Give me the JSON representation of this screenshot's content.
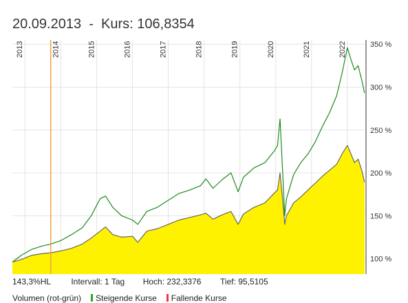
{
  "header": {
    "date": "20.09.2013",
    "separator": "-",
    "kurs_label": "Kurs:",
    "kurs_value": "106,8354"
  },
  "footer": {
    "hl": "143,3%HL",
    "interval": "Intervall: 1 Tag",
    "high": "Hoch: 232,3376",
    "low": "Tief: 95,5105"
  },
  "legend": {
    "volume": "Volumen (rot-grün)",
    "rising": "Steigende Kurse",
    "falling": "Fallende Kurse",
    "rising_color": "#22aa22",
    "falling_color": "#ee3344"
  },
  "chart_data": {
    "type": "area",
    "x_unit": "year",
    "xlim": [
      2012.65,
      2022.52
    ],
    "ylim": [
      82,
      355
    ],
    "y_axis_position": "right",
    "y_ticks": [
      {
        "value": 100,
        "label": "100 %"
      },
      {
        "value": 150,
        "label": "150 %"
      },
      {
        "value": 200,
        "label": "200 %"
      },
      {
        "value": 250,
        "label": "250 %"
      },
      {
        "value": 300,
        "label": "300 %"
      },
      {
        "value": 350,
        "label": "350 %"
      }
    ],
    "x_ticks": [
      {
        "value": 2013.0,
        "label": "2013"
      },
      {
        "value": 2014.0,
        "label": "2014"
      },
      {
        "value": 2015.0,
        "label": "2015"
      },
      {
        "value": 2016.0,
        "label": "2016"
      },
      {
        "value": 2017.0,
        "label": "2017"
      },
      {
        "value": 2018.0,
        "label": "2018"
      },
      {
        "value": 2019.0,
        "label": "2019"
      },
      {
        "value": 2020.0,
        "label": "2020"
      },
      {
        "value": 2021.0,
        "label": "2021"
      },
      {
        "value": 2022.0,
        "label": "2022"
      }
    ],
    "marker": {
      "x": 2013.72,
      "color": "#f5a040"
    },
    "grid": true,
    "series": [
      {
        "color": "#1a8a1a",
        "fill": "none",
        "points": [
          [
            2012.65,
            96
          ],
          [
            2012.9,
            104
          ],
          [
            2013.2,
            111
          ],
          [
            2013.5,
            115
          ],
          [
            2013.72,
            117
          ],
          [
            2014.0,
            121
          ],
          [
            2014.3,
            128
          ],
          [
            2014.6,
            136
          ],
          [
            2014.85,
            150
          ],
          [
            2015.1,
            170
          ],
          [
            2015.25,
            173
          ],
          [
            2015.45,
            160
          ],
          [
            2015.7,
            150
          ],
          [
            2016.0,
            145
          ],
          [
            2016.15,
            140
          ],
          [
            2016.4,
            155
          ],
          [
            2016.7,
            160
          ],
          [
            2017.0,
            168
          ],
          [
            2017.3,
            176
          ],
          [
            2017.6,
            180
          ],
          [
            2017.9,
            185
          ],
          [
            2018.05,
            193
          ],
          [
            2018.25,
            182
          ],
          [
            2018.5,
            192
          ],
          [
            2018.75,
            200
          ],
          [
            2018.95,
            178
          ],
          [
            2019.1,
            195
          ],
          [
            2019.4,
            206
          ],
          [
            2019.7,
            212
          ],
          [
            2019.95,
            225
          ],
          [
            2020.05,
            232
          ],
          [
            2020.12,
            263
          ],
          [
            2020.2,
            195
          ],
          [
            2020.25,
            150
          ],
          [
            2020.3,
            170
          ],
          [
            2020.5,
            198
          ],
          [
            2020.7,
            212
          ],
          [
            2020.9,
            222
          ],
          [
            2021.1,
            236
          ],
          [
            2021.3,
            254
          ],
          [
            2021.5,
            270
          ],
          [
            2021.7,
            290
          ],
          [
            2021.85,
            316
          ],
          [
            2022.0,
            346
          ],
          [
            2022.1,
            332
          ],
          [
            2022.2,
            320
          ],
          [
            2022.3,
            325
          ],
          [
            2022.4,
            308
          ],
          [
            2022.48,
            293
          ]
        ]
      },
      {
        "color": "#666666",
        "fill": "#fff200",
        "points": [
          [
            2012.65,
            96
          ],
          [
            2012.9,
            99
          ],
          [
            2013.2,
            104
          ],
          [
            2013.5,
            106
          ],
          [
            2013.72,
            106.8
          ],
          [
            2014.0,
            109
          ],
          [
            2014.3,
            112
          ],
          [
            2014.6,
            117
          ],
          [
            2014.85,
            124
          ],
          [
            2015.1,
            132
          ],
          [
            2015.25,
            137
          ],
          [
            2015.45,
            128
          ],
          [
            2015.7,
            125
          ],
          [
            2016.0,
            126
          ],
          [
            2016.15,
            119
          ],
          [
            2016.4,
            132
          ],
          [
            2016.7,
            135
          ],
          [
            2017.0,
            140
          ],
          [
            2017.3,
            145
          ],
          [
            2017.6,
            148
          ],
          [
            2017.9,
            151
          ],
          [
            2018.05,
            153
          ],
          [
            2018.25,
            146
          ],
          [
            2018.5,
            151
          ],
          [
            2018.75,
            155
          ],
          [
            2018.95,
            140
          ],
          [
            2019.1,
            152
          ],
          [
            2019.4,
            160
          ],
          [
            2019.7,
            165
          ],
          [
            2019.95,
            176
          ],
          [
            2020.05,
            180
          ],
          [
            2020.12,
            200
          ],
          [
            2020.2,
            165
          ],
          [
            2020.25,
            140
          ],
          [
            2020.3,
            150
          ],
          [
            2020.5,
            165
          ],
          [
            2020.7,
            172
          ],
          [
            2020.9,
            180
          ],
          [
            2021.1,
            188
          ],
          [
            2021.3,
            196
          ],
          [
            2021.5,
            203
          ],
          [
            2021.7,
            210
          ],
          [
            2021.85,
            222
          ],
          [
            2022.0,
            232
          ],
          [
            2022.1,
            222
          ],
          [
            2022.2,
            212
          ],
          [
            2022.3,
            216
          ],
          [
            2022.4,
            203
          ],
          [
            2022.48,
            189
          ]
        ]
      }
    ]
  }
}
